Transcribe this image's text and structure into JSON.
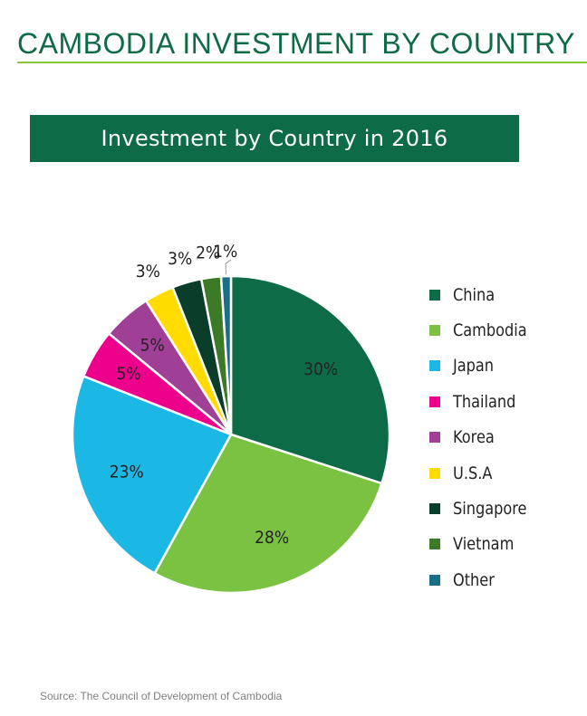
{
  "header": {
    "title": "CAMBODIA INVESTMENT BY COUNTRY"
  },
  "chart_data": {
    "type": "pie",
    "title": "Investment by Country in 2016",
    "categories": [
      "China",
      "Cambodia",
      "Japan",
      "Thailand",
      "Korea",
      "U.S.A",
      "Singapore",
      "Vietnam",
      "Other"
    ],
    "values": [
      30,
      28,
      23,
      5,
      5,
      3,
      3,
      2,
      1
    ],
    "data_labels": [
      "30%",
      "28%",
      "23%",
      "5%",
      "5%",
      "3%",
      "3%",
      "2%",
      "1%"
    ],
    "colors": [
      "#0e6b47",
      "#7cc242",
      "#1bb7e5",
      "#ec008c",
      "#a03f96",
      "#ffdb00",
      "#0a3d2a",
      "#3c7a27",
      "#1a6e8a"
    ],
    "legend_position": "right"
  },
  "footer": {
    "source": "Source: The Council of Development of Cambodia"
  }
}
